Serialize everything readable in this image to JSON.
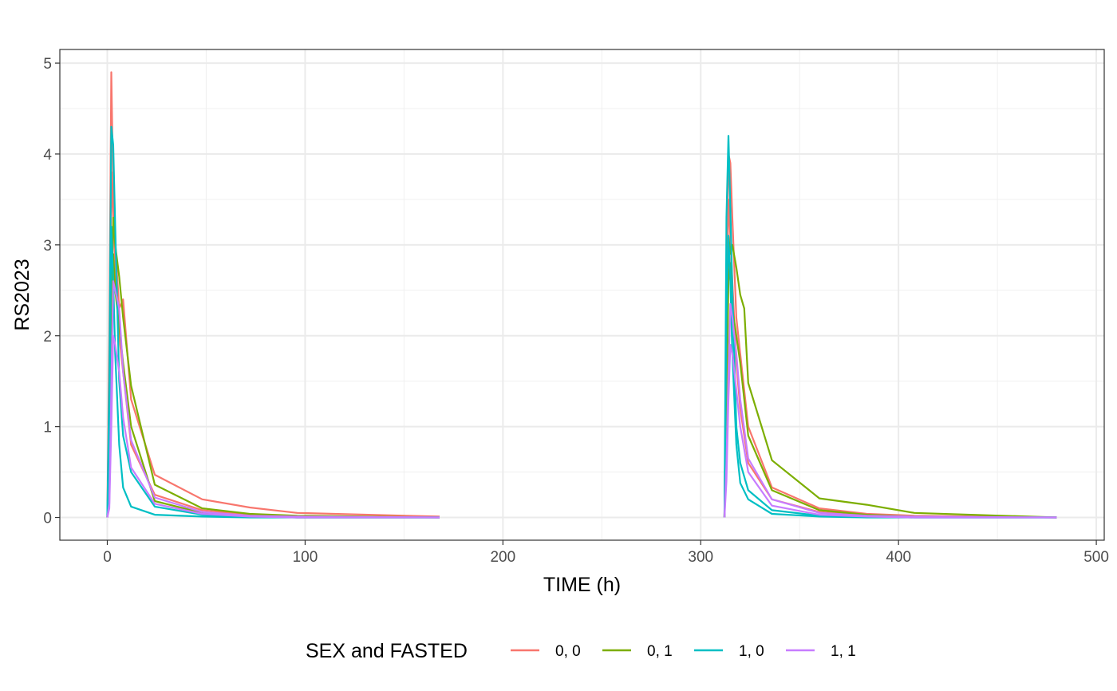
{
  "chart_data": {
    "type": "line",
    "xlabel": "TIME (h)",
    "ylabel": "RS2023",
    "xlim": [
      -24,
      504
    ],
    "ylim": [
      -0.25,
      5.15
    ],
    "x_ticks": [
      0,
      100,
      200,
      300,
      400,
      500
    ],
    "x_tick_labels": [
      "0",
      "100",
      "200",
      "300",
      "400",
      "500"
    ],
    "y_ticks": [
      0,
      1,
      2,
      3,
      4,
      5
    ],
    "y_tick_labels": [
      "0",
      "1",
      "2",
      "3",
      "4",
      "5"
    ],
    "grid": true,
    "legend": {
      "title": "SEX and FASTED",
      "position": "bottom",
      "entries": [
        {
          "label": "0, 0",
          "color": "#F8766D"
        },
        {
          "label": "0, 1",
          "color": "#7CAE00"
        },
        {
          "label": "1, 0",
          "color": "#00BFC4"
        },
        {
          "label": "1, 1",
          "color": "#C77CFF"
        }
      ]
    },
    "series": [
      {
        "group": "0, 0",
        "color": "#F8766D",
        "x": [
          0,
          1,
          2,
          3,
          4,
          6,
          8,
          12,
          24,
          48,
          72,
          96,
          168
        ],
        "y": [
          0,
          2.0,
          4.9,
          3.6,
          3.0,
          2.3,
          2.4,
          1.3,
          0.47,
          0.2,
          0.11,
          0.05,
          0.01
        ]
      },
      {
        "group": "0, 0",
        "color": "#F8766D",
        "x": [
          0,
          1,
          2,
          3,
          4,
          6,
          8,
          12,
          24,
          48,
          72,
          96,
          168
        ],
        "y": [
          0,
          1.2,
          3.8,
          3.3,
          2.8,
          2.0,
          1.6,
          0.8,
          0.25,
          0.08,
          0.03,
          0.01,
          0.0
        ]
      },
      {
        "group": "0, 1",
        "color": "#7CAE00",
        "x": [
          0,
          1,
          2,
          3,
          4,
          6,
          8,
          12,
          24,
          48,
          72,
          96,
          168
        ],
        "y": [
          0,
          0.6,
          2.2,
          3.3,
          3.0,
          2.65,
          2.2,
          1.45,
          0.36,
          0.1,
          0.04,
          0.02,
          0.0
        ]
      },
      {
        "group": "0, 1",
        "color": "#7CAE00",
        "x": [
          0,
          1,
          2,
          3,
          4,
          6,
          8,
          12,
          24,
          48,
          72,
          96,
          168
        ],
        "y": [
          0,
          0.5,
          1.9,
          2.9,
          2.5,
          2.1,
          1.7,
          1.0,
          0.18,
          0.05,
          0.02,
          0.0,
          0.0
        ]
      },
      {
        "group": "1, 0",
        "color": "#00BFC4",
        "x": [
          0,
          1,
          2,
          3,
          4,
          6,
          8,
          12,
          24,
          48,
          72,
          96,
          168
        ],
        "y": [
          0,
          1.5,
          4.3,
          4.1,
          3.2,
          1.5,
          0.9,
          0.5,
          0.12,
          0.03,
          0.01,
          0.0,
          0.0
        ]
      },
      {
        "group": "1, 0",
        "color": "#00BFC4",
        "x": [
          0,
          1,
          2,
          3,
          4,
          6,
          8,
          12,
          24,
          48,
          72,
          96,
          168
        ],
        "y": [
          0,
          0.9,
          3.2,
          2.6,
          1.8,
          0.8,
          0.33,
          0.12,
          0.03,
          0.01,
          0.0,
          0.0,
          0.0
        ]
      },
      {
        "group": "1, 1",
        "color": "#C77CFF",
        "x": [
          0,
          1,
          2,
          3,
          4,
          6,
          8,
          12,
          24,
          48,
          72,
          96,
          168
        ],
        "y": [
          0,
          0.15,
          1.4,
          2.6,
          2.5,
          2.3,
          1.6,
          0.85,
          0.22,
          0.06,
          0.02,
          0.01,
          0.0
        ]
      },
      {
        "group": "1, 1",
        "color": "#C77CFF",
        "x": [
          0,
          1,
          2,
          3,
          4,
          6,
          8,
          12,
          24,
          48,
          72,
          96,
          168
        ],
        "y": [
          0,
          0.1,
          1.0,
          2.0,
          1.9,
          1.6,
          1.1,
          0.55,
          0.15,
          0.04,
          0.01,
          0.0,
          0.0
        ]
      },
      {
        "group": "0, 0",
        "color": "#F8766D",
        "x": [
          312,
          313,
          314,
          315,
          316,
          318,
          320,
          324,
          336,
          360,
          384,
          408,
          480
        ],
        "y": [
          0,
          2.5,
          4.0,
          3.9,
          3.3,
          2.2,
          1.8,
          1.0,
          0.33,
          0.1,
          0.04,
          0.02,
          0.0
        ]
      },
      {
        "group": "0, 0",
        "color": "#F8766D",
        "x": [
          312,
          313,
          314,
          315,
          316,
          318,
          320,
          324,
          336,
          360,
          384,
          408,
          480
        ],
        "y": [
          0,
          2.0,
          3.5,
          3.1,
          2.6,
          1.7,
          1.2,
          0.6,
          0.2,
          0.06,
          0.02,
          0.01,
          0.0
        ]
      },
      {
        "group": "0, 1",
        "color": "#7CAE00",
        "x": [
          312,
          313,
          314,
          315,
          316,
          318,
          320,
          322,
          324,
          336,
          360,
          384,
          408,
          480
        ],
        "y": [
          0,
          1.5,
          3.1,
          2.9,
          3.0,
          2.75,
          2.45,
          2.3,
          1.48,
          0.63,
          0.21,
          0.14,
          0.05,
          0.0
        ]
      },
      {
        "group": "0, 1",
        "color": "#7CAE00",
        "x": [
          312,
          313,
          314,
          315,
          316,
          318,
          320,
          324,
          336,
          360,
          384,
          408,
          480
        ],
        "y": [
          0,
          1.1,
          2.6,
          2.8,
          2.3,
          2.0,
          1.7,
          0.9,
          0.3,
          0.08,
          0.03,
          0.01,
          0.0
        ]
      },
      {
        "group": "1, 0",
        "color": "#00BFC4",
        "x": [
          312,
          313,
          314,
          315,
          316,
          318,
          320,
          324,
          336,
          360,
          384,
          408,
          480
        ],
        "y": [
          0,
          3.3,
          4.2,
          3.4,
          2.5,
          1.0,
          0.6,
          0.3,
          0.08,
          0.02,
          0.01,
          0.0,
          0.0
        ]
      },
      {
        "group": "1, 0",
        "color": "#00BFC4",
        "x": [
          312,
          313,
          314,
          315,
          316,
          318,
          320,
          324,
          336,
          360,
          384,
          408,
          480
        ],
        "y": [
          0,
          2.2,
          3.1,
          2.6,
          1.8,
          0.8,
          0.38,
          0.2,
          0.04,
          0.01,
          0.0,
          0.0,
          0.0
        ]
      },
      {
        "group": "1, 1",
        "color": "#C77CFF",
        "x": [
          312,
          313,
          314,
          315,
          316,
          318,
          320,
          324,
          336,
          360,
          384,
          408,
          480
        ],
        "y": [
          0,
          0.6,
          1.6,
          2.35,
          2.2,
          1.8,
          1.3,
          0.65,
          0.2,
          0.05,
          0.02,
          0.01,
          0.0
        ]
      },
      {
        "group": "1, 1",
        "color": "#C77CFF",
        "x": [
          312,
          313,
          314,
          315,
          316,
          318,
          320,
          324,
          336,
          360,
          384,
          408,
          480
        ],
        "y": [
          0,
          0.4,
          1.3,
          1.9,
          1.8,
          1.4,
          1.0,
          0.5,
          0.13,
          0.03,
          0.01,
          0.0,
          0.0
        ]
      }
    ]
  }
}
